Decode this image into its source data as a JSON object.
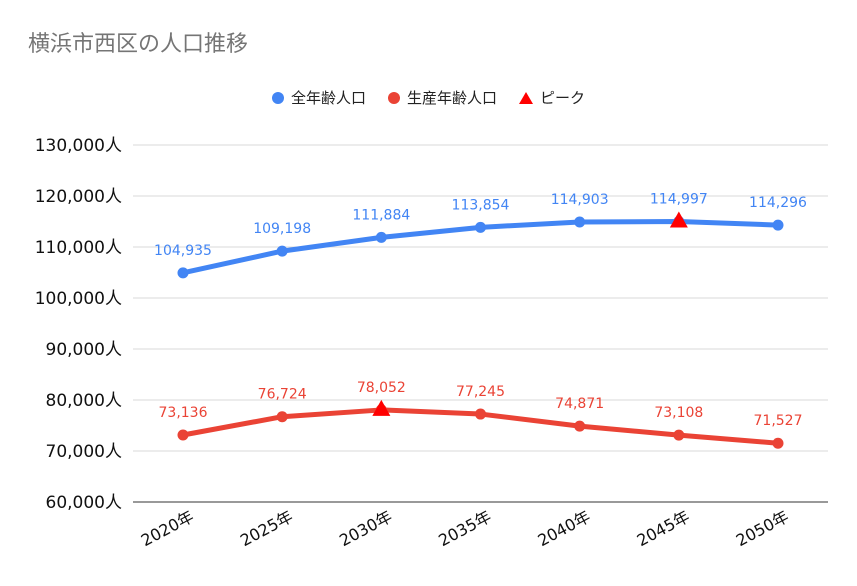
{
  "chart_data": {
    "type": "line",
    "title": "横浜市西区の人口推移",
    "categories": [
      "2020年",
      "2025年",
      "2030年",
      "2035年",
      "2040年",
      "2045年",
      "2050年"
    ],
    "series": [
      {
        "name": "全年齢人口",
        "color": "#4285f4",
        "values": [
          104935,
          109198,
          111884,
          113854,
          114903,
          114997,
          114296
        ],
        "labels": [
          "104,935",
          "109,198",
          "111,884",
          "113,854",
          "114,903",
          "114,997",
          "114,296"
        ]
      },
      {
        "name": "生産年齢人口",
        "color": "#ea4335",
        "values": [
          73136,
          76724,
          78052,
          77245,
          74871,
          73108,
          71527
        ],
        "labels": [
          "73,136",
          "76,724",
          "78,052",
          "77,245",
          "74,871",
          "73,108",
          "71,527"
        ]
      }
    ],
    "peaks": {
      "name": "ピーク",
      "color": "#ff0000",
      "points": [
        {
          "category": "2030年",
          "value": 78052
        },
        {
          "category": "2045年",
          "value": 114997
        }
      ]
    },
    "yticks": [
      60000,
      70000,
      80000,
      90000,
      100000,
      110000,
      120000,
      130000
    ],
    "ytick_labels": [
      "60,000人",
      "70,000人",
      "80,000人",
      "90,000人",
      "100,000人",
      "110,000人",
      "120,000人",
      "130,000人"
    ],
    "ylim": [
      60000,
      130000
    ],
    "grid": true,
    "legend_position": "top-center"
  }
}
